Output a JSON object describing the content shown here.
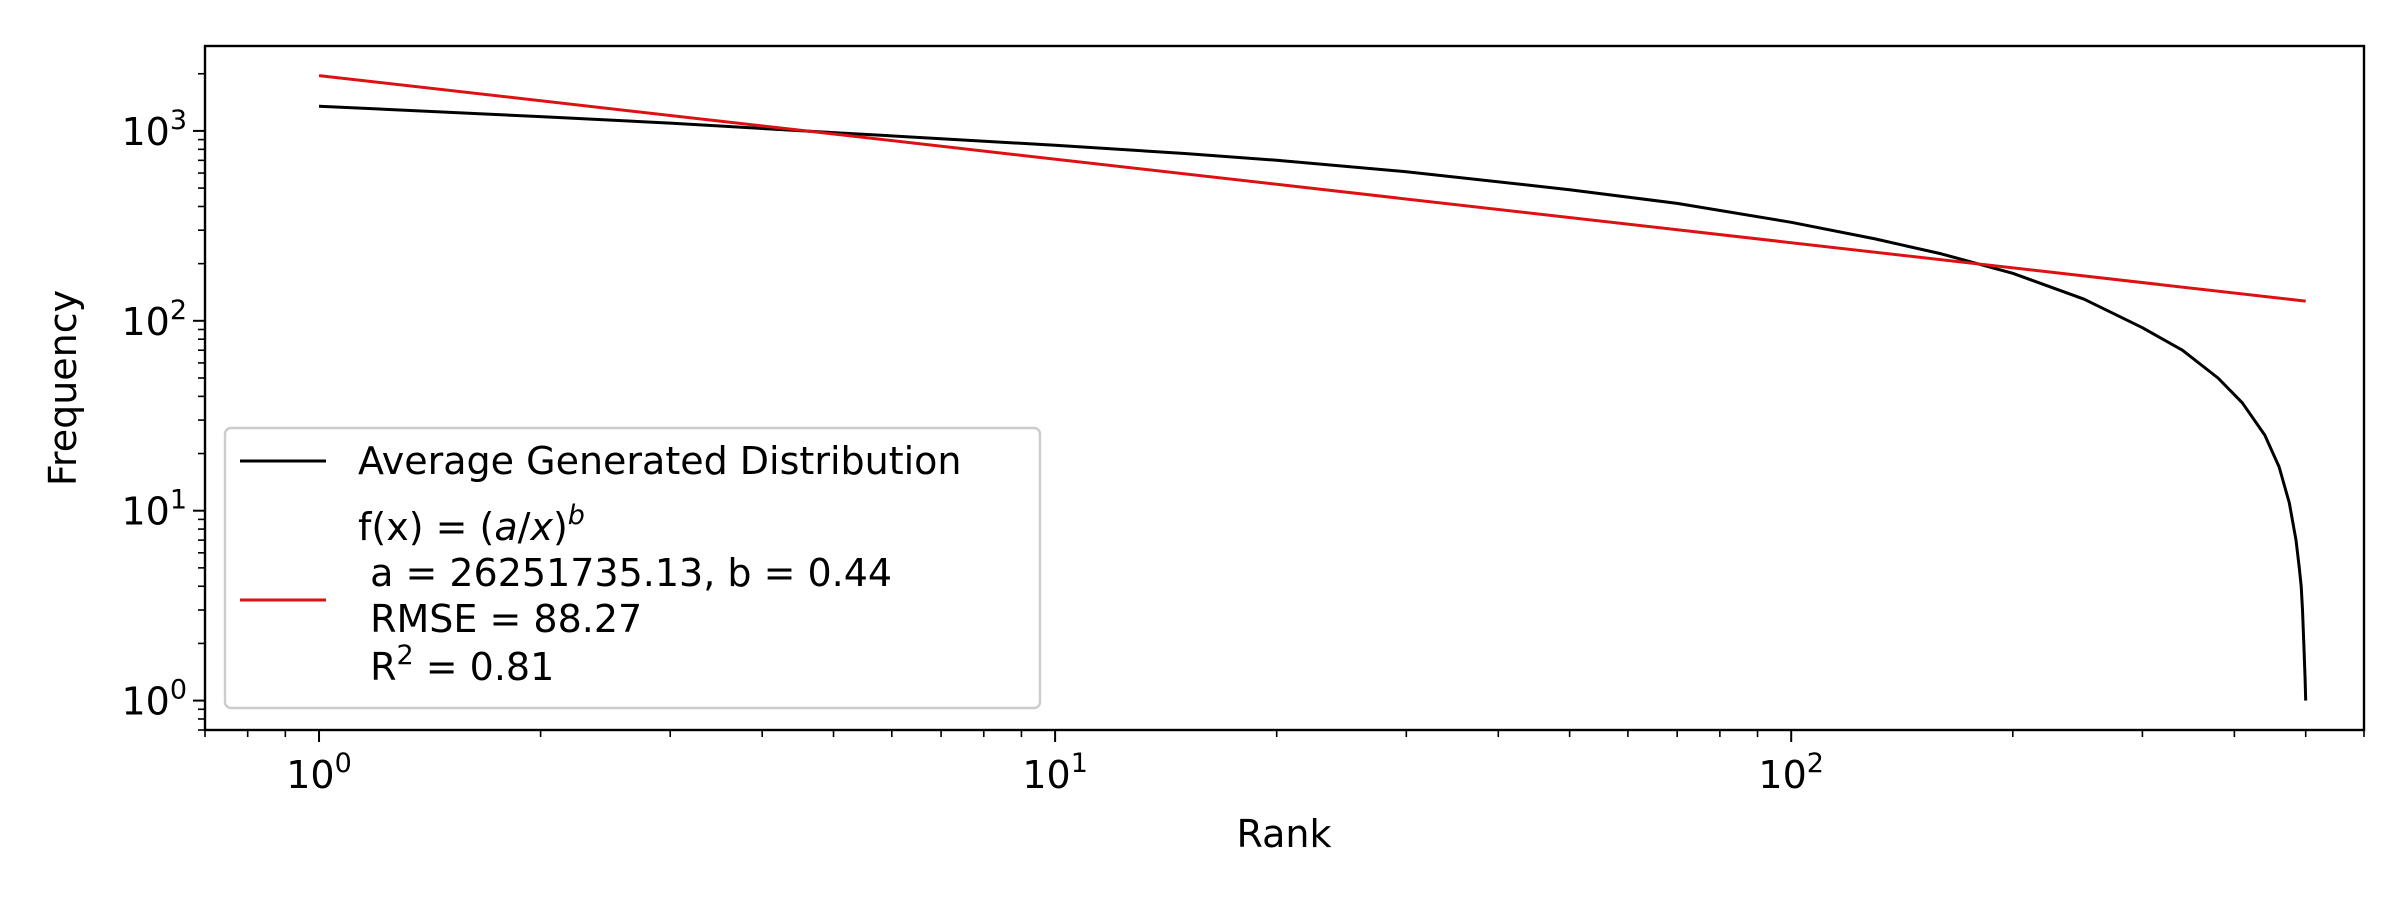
{
  "chart_data": {
    "type": "line",
    "title": "",
    "xlabel": "Rank",
    "ylabel": "Frequency",
    "x_scale": "log",
    "y_scale": "log",
    "xlim": [
      0.7,
      600
    ],
    "ylim": [
      0.7,
      2800
    ],
    "grid": false,
    "legend_position": "lower-left",
    "x_ticks": [
      {
        "base": "10",
        "exp": "0",
        "value": 1
      },
      {
        "base": "10",
        "exp": "1",
        "value": 10
      },
      {
        "base": "10",
        "exp": "2",
        "value": 100
      }
    ],
    "y_ticks": [
      {
        "base": "10",
        "exp": "0",
        "value": 1
      },
      {
        "base": "10",
        "exp": "1",
        "value": 10
      },
      {
        "base": "10",
        "exp": "2",
        "value": 100
      },
      {
        "base": "10",
        "exp": "3",
        "value": 1000
      }
    ],
    "series": [
      {
        "name": "Average Generated Distribution",
        "color": "#000000",
        "x": [
          1,
          2,
          3,
          5,
          7,
          10,
          15,
          20,
          30,
          50,
          70,
          100,
          130,
          160,
          200,
          250,
          300,
          340,
          380,
          410,
          440,
          460,
          475,
          485,
          490,
          493,
          495,
          497,
          499,
          500
        ],
        "y": [
          1350,
          1190,
          1100,
          980,
          910,
          840,
          760,
          700,
          610,
          490,
          415,
          330,
          270,
          225,
          178,
          130,
          92,
          70,
          50,
          37,
          25,
          17,
          11,
          7,
          5,
          4,
          3,
          2,
          1.3,
          1
        ]
      },
      {
        "name": "f(x) = (a/x)^b",
        "legend_lines": [
          " a = 26251735.13, b = 0.44",
          " RMSE = 88.27",
          " R",
          " = 0.81"
        ],
        "legend_sup": "2",
        "color": "#dd1111",
        "x": [
          1,
          500
        ],
        "y": [
          1956,
          127
        ]
      }
    ]
  }
}
